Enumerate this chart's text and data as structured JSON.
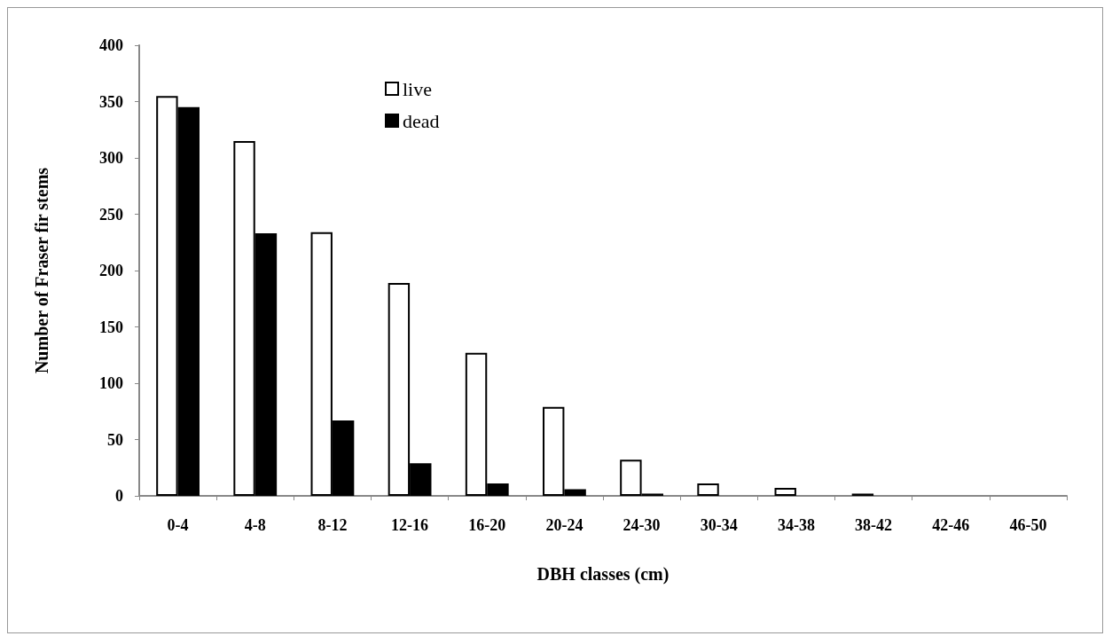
{
  "chart_data": {
    "type": "bar",
    "xlabel": "DBH classes (cm)",
    "ylabel": "Number of Fraser fir stems",
    "categories": [
      "0-4",
      "4-8",
      "8-12",
      "12-16",
      "16-20",
      "20-24",
      "24-30",
      "30-34",
      "34-38",
      "38-42",
      "42-46",
      "46-50"
    ],
    "series": [
      {
        "name": "live",
        "color": "#ffffff",
        "values": [
          355,
          315,
          234,
          189,
          127,
          79,
          32,
          11,
          7,
          2,
          0,
          0
        ]
      },
      {
        "name": "dead",
        "color": "#000000",
        "values": [
          345,
          233,
          67,
          29,
          11,
          6,
          2,
          0,
          0,
          0,
          0,
          0
        ]
      }
    ],
    "ylim": [
      0,
      400
    ],
    "yticks": [
      0,
      50,
      100,
      150,
      200,
      250,
      300,
      350,
      400
    ],
    "grid": false,
    "legend": "top"
  }
}
